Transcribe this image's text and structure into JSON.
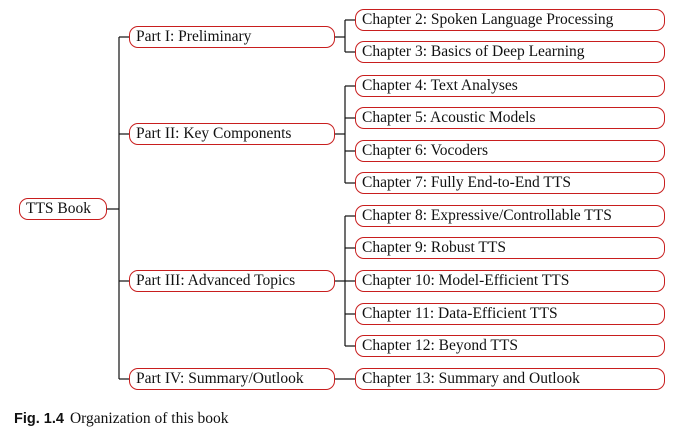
{
  "tree": {
    "root": "TTS Book",
    "parts": [
      {
        "label": "Part I: Preliminary",
        "chapters": [
          "Chapter 2: Spoken Language Processing",
          "Chapter 3: Basics of Deep Learning"
        ]
      },
      {
        "label": "Part II: Key Components",
        "chapters": [
          "Chapter 4: Text Analyses",
          "Chapter 5: Acoustic Models",
          "Chapter 6: Vocoders",
          "Chapter 7: Fully End-to-End TTS"
        ]
      },
      {
        "label": "Part III: Advanced Topics",
        "chapters": [
          "Chapter 8: Expressive/Controllable TTS",
          "Chapter 9: Robust TTS",
          "Chapter 10: Model-Efficient TTS",
          "Chapter 11: Data-Efficient TTS",
          "Chapter 12: Beyond TTS"
        ]
      },
      {
        "label": "Part IV: Summary/Outlook",
        "chapters": [
          "Chapter 13: Summary and Outlook"
        ]
      }
    ]
  },
  "caption": {
    "number": "Fig. 1.4",
    "text": "Organization of this book"
  },
  "colors": {
    "node_border": "#c81e1e",
    "line": "#111111"
  }
}
